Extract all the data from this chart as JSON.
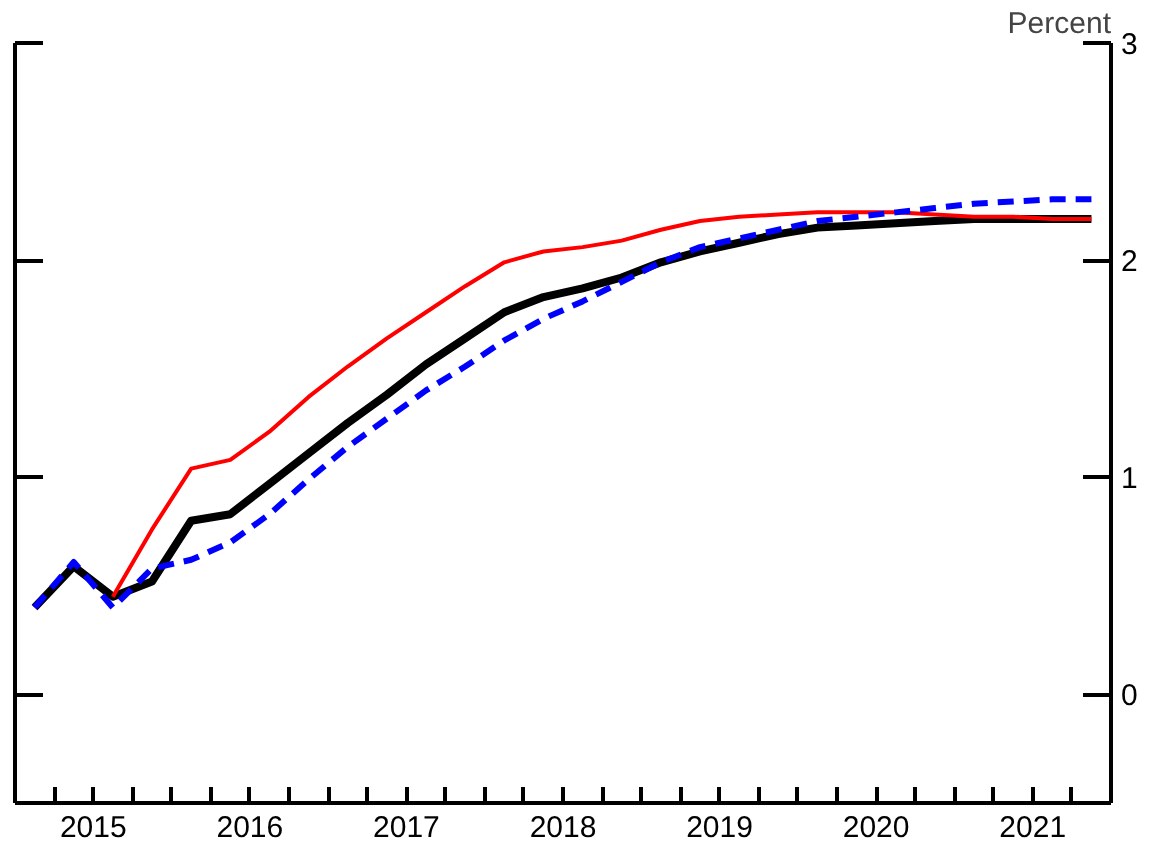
{
  "chart_data": {
    "type": "line",
    "ylabel": "Percent",
    "x": [
      2015.125,
      2015.375,
      2015.625,
      2015.875,
      2016.125,
      2016.375,
      2016.625,
      2016.875,
      2017.125,
      2017.375,
      2017.625,
      2017.875,
      2018.125,
      2018.375,
      2018.625,
      2018.875,
      2019.125,
      2019.375,
      2019.625,
      2019.875,
      2020.125,
      2020.375,
      2020.625,
      2020.875,
      2021.125,
      2021.375,
      2021.625,
      2021.875
    ],
    "series": [
      {
        "color": "#000000",
        "line_style": "solid",
        "values": [
          0.4,
          0.59,
          0.45,
          0.52,
          0.8,
          0.83,
          0.97,
          1.11,
          1.25,
          1.38,
          1.52,
          1.64,
          1.76,
          1.83,
          1.87,
          1.92,
          1.99,
          2.04,
          2.08,
          2.12,
          2.15,
          2.16,
          2.17,
          2.18,
          2.19,
          2.19,
          2.19,
          2.19
        ]
      },
      {
        "color": "#ff0000",
        "line_style": "solid",
        "values": [
          null,
          null,
          0.45,
          0.76,
          1.04,
          1.08,
          1.21,
          1.37,
          1.51,
          1.64,
          1.76,
          1.88,
          1.99,
          2.04,
          2.06,
          2.09,
          2.14,
          2.18,
          2.2,
          2.21,
          2.22,
          2.22,
          2.22,
          2.21,
          2.2,
          2.2,
          2.19,
          2.19
        ]
      },
      {
        "color": "#0000ff",
        "line_style": "dashed",
        "values": [
          0.4,
          0.61,
          0.4,
          0.58,
          0.62,
          0.7,
          0.83,
          0.99,
          1.14,
          1.27,
          1.4,
          1.51,
          1.63,
          1.73,
          1.81,
          1.9,
          1.99,
          2.06,
          2.1,
          2.14,
          2.18,
          2.2,
          2.22,
          2.24,
          2.26,
          2.27,
          2.28,
          2.28
        ]
      }
    ],
    "xlim": [
      2015,
      2022
    ],
    "xticks": [
      {
        "value": 2015.25,
        "label": null
      },
      {
        "value": 2015.5,
        "label": "2015"
      },
      {
        "value": 2015.75,
        "label": null
      },
      {
        "value": 2016,
        "label": null
      },
      {
        "value": 2016.25,
        "label": null
      },
      {
        "value": 2016.5,
        "label": "2016"
      },
      {
        "value": 2016.75,
        "label": null
      },
      {
        "value": 2017,
        "label": null
      },
      {
        "value": 2017.25,
        "label": null
      },
      {
        "value": 2017.5,
        "label": "2017"
      },
      {
        "value": 2017.75,
        "label": null
      },
      {
        "value": 2018,
        "label": null
      },
      {
        "value": 2018.25,
        "label": null
      },
      {
        "value": 2018.5,
        "label": "2018"
      },
      {
        "value": 2018.75,
        "label": null
      },
      {
        "value": 2019,
        "label": null
      },
      {
        "value": 2019.25,
        "label": null
      },
      {
        "value": 2019.5,
        "label": "2019"
      },
      {
        "value": 2019.75,
        "label": null
      },
      {
        "value": 2020,
        "label": null
      },
      {
        "value": 2020.25,
        "label": null
      },
      {
        "value": 2020.5,
        "label": "2020"
      },
      {
        "value": 2020.75,
        "label": null
      },
      {
        "value": 2021,
        "label": null
      },
      {
        "value": 2021.25,
        "label": null
      },
      {
        "value": 2021.5,
        "label": "2021"
      },
      {
        "value": 2021.75,
        "label": null
      }
    ],
    "ylim": [
      -0.5,
      3
    ],
    "yticks": [
      0,
      1,
      2,
      3
    ],
    "grid": false
  }
}
